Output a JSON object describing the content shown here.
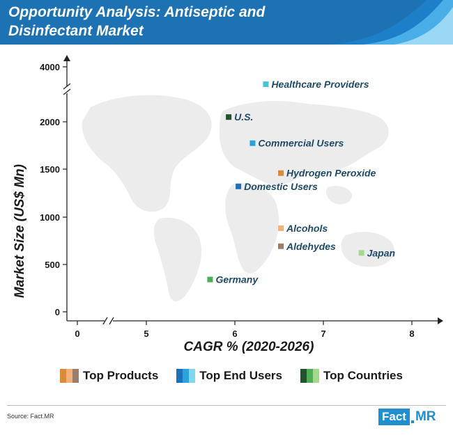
{
  "header": {
    "title": "Opportunity Analysis: Antiseptic and Disinfectant Market"
  },
  "chart_data": {
    "type": "scatter",
    "title": "Opportunity Analysis: Antiseptic and Disinfectant Market",
    "xlabel": "CAGR % (2020-2026)",
    "ylabel": "Market Size (US$ Mn)",
    "x_ticks": [
      "0",
      "5",
      "6",
      "7",
      "8"
    ],
    "y_ticks": [
      "0",
      "500",
      "1000",
      "1500",
      "2000",
      "4000"
    ],
    "x_axis_break": true,
    "y_axis_break": true,
    "xlim": [
      5,
      8
    ],
    "ylim": [
      0,
      2200
    ],
    "grid": false,
    "legend_placement": "bottom",
    "points": [
      {
        "label": "Healthcare Providers",
        "x": 6.35,
        "y": 4000,
        "group": "Top End Users",
        "color": "#45c3d9"
      },
      {
        "label": "U.S.",
        "x": 5.93,
        "y": 2050,
        "group": "Top Countries",
        "color": "#24522c"
      },
      {
        "label": "Commercial Users",
        "x": 6.2,
        "y": 1775,
        "group": "Top End Users",
        "color": "#2aa2db"
      },
      {
        "label": "Hydrogen Peroxide",
        "x": 6.52,
        "y": 1460,
        "group": "Top Products",
        "color": "#d98a3a"
      },
      {
        "label": "Domestic Users",
        "x": 6.04,
        "y": 1320,
        "group": "Top End Users",
        "color": "#1c72b8"
      },
      {
        "label": "Alcohols",
        "x": 6.52,
        "y": 880,
        "group": "Top Products",
        "color": "#f2b179"
      },
      {
        "label": "Aldehydes",
        "x": 6.52,
        "y": 690,
        "group": "Top Products",
        "color": "#9b7d6a"
      },
      {
        "label": "Japan",
        "x": 7.43,
        "y": 620,
        "group": "Top Countries",
        "color": "#a4d88f"
      },
      {
        "label": "Germany",
        "x": 5.72,
        "y": 340,
        "group": "Top Countries",
        "color": "#4dae55"
      }
    ]
  },
  "legend": [
    {
      "label": "Top Products",
      "colors": [
        "#d98a3a",
        "#f2b179",
        "#9b7d6a"
      ]
    },
    {
      "label": "Top End Users",
      "colors": [
        "#1c72b8",
        "#2aa2db",
        "#7fd6ee"
      ]
    },
    {
      "label": "Top Countries",
      "colors": [
        "#24522c",
        "#4dae55",
        "#a4d88f"
      ]
    }
  ],
  "footer": {
    "source": "Source: Fact.MR",
    "logo_main": "Fact",
    "logo_suffix": "MR"
  }
}
